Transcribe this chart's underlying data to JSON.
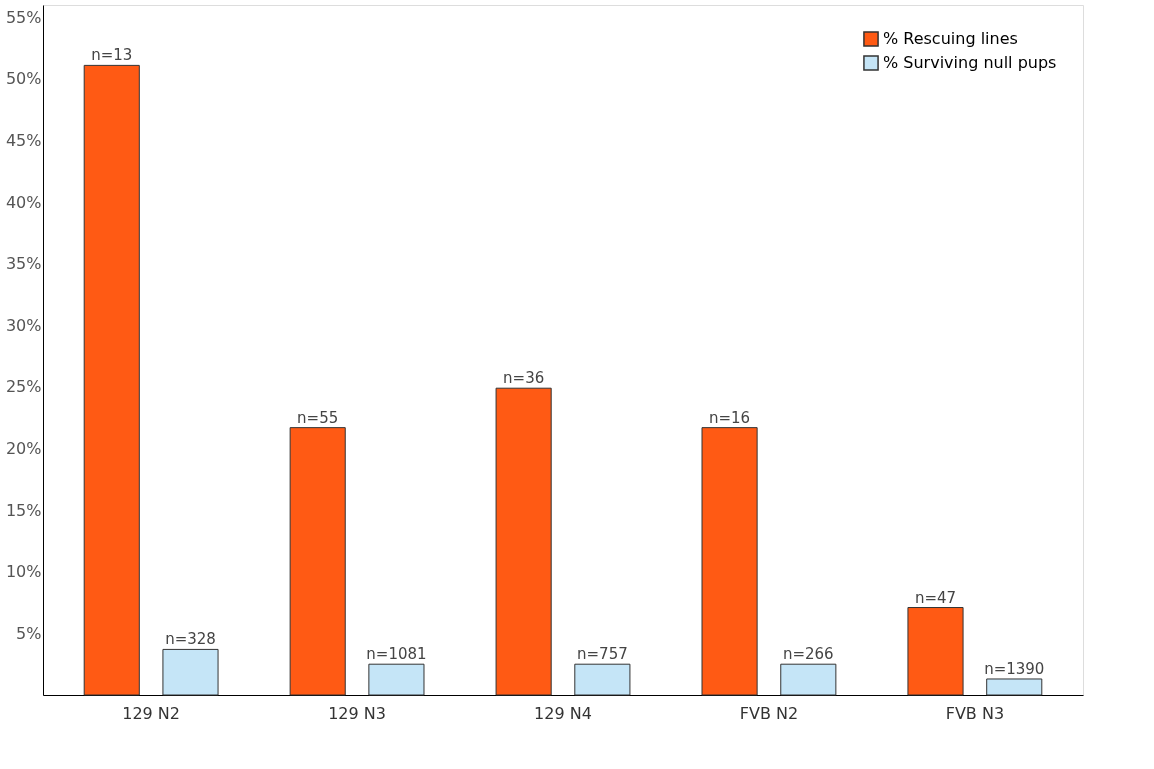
{
  "chart_data": {
    "type": "bar",
    "categories": [
      "129 N2",
      "129 N3",
      "129 N4",
      "FVB N2",
      "FVB N3"
    ],
    "series": [
      {
        "name": "% Rescuing lines",
        "color": "#ff5a14",
        "values": [
          51.1,
          21.7,
          24.9,
          21.7,
          7.1
        ]
      },
      {
        "name": "% Surviving null pups",
        "color": "#c5e5f7",
        "values": [
          3.7,
          2.5,
          2.5,
          2.5,
          1.3
        ]
      }
    ],
    "annotations": [
      "n=13",
      "n=328",
      "n=55",
      "n=1081",
      "n=36",
      "n=757",
      "n=16",
      "n=266",
      "n=47",
      "n=1390"
    ],
    "ylim": [
      0,
      56
    ],
    "yticks": [
      {
        "value": 5,
        "label": "5%"
      },
      {
        "value": 10,
        "label": "10%"
      },
      {
        "value": 15,
        "label": "15%"
      },
      {
        "value": 20,
        "label": "20%"
      },
      {
        "value": 25,
        "label": "25%"
      },
      {
        "value": 30,
        "label": "30%"
      },
      {
        "value": 35,
        "label": "35%"
      },
      {
        "value": 40,
        "label": "40%"
      },
      {
        "value": 45,
        "label": "45%"
      },
      {
        "value": 50,
        "label": "50%"
      },
      {
        "value": 55,
        "label": "55%"
      }
    ],
    "grid": false,
    "legend": "top right"
  }
}
